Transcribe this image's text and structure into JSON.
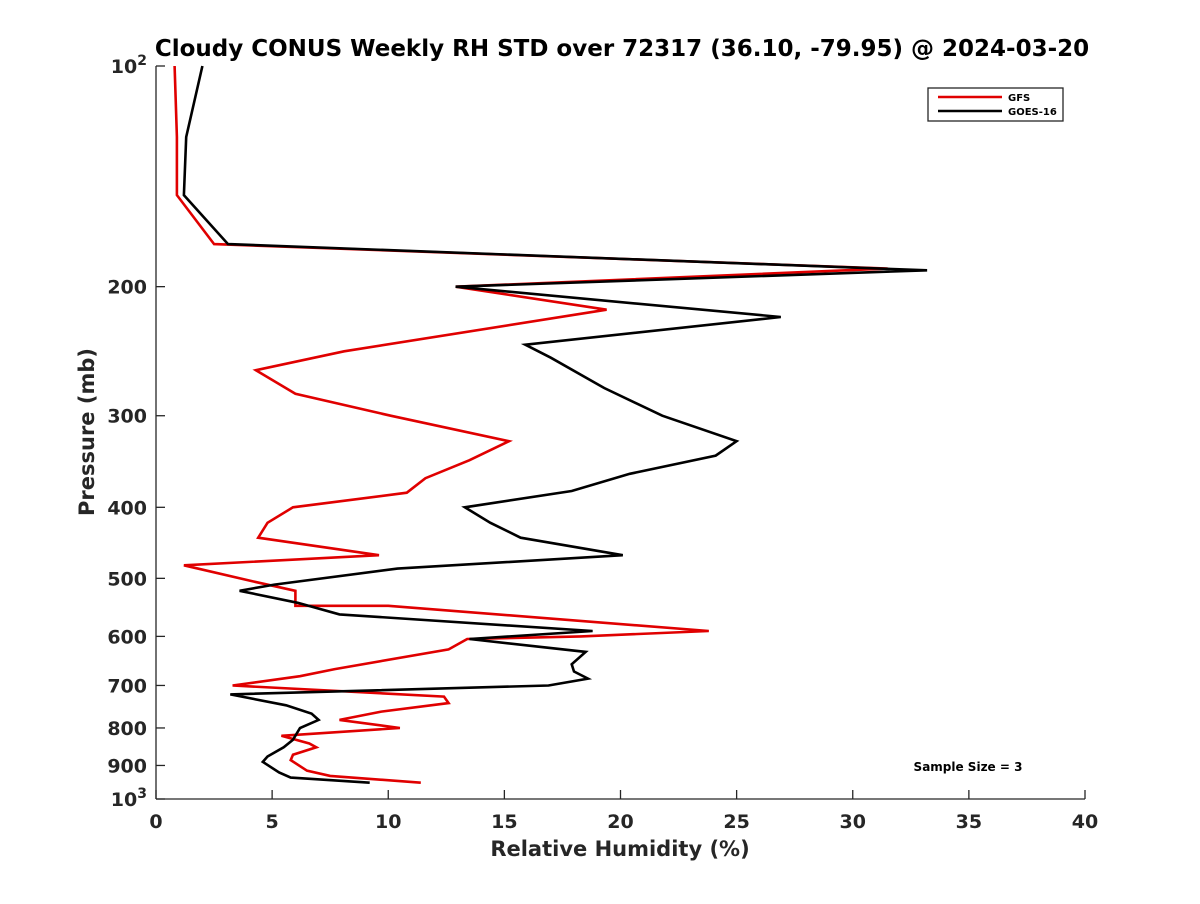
{
  "chart_data": {
    "type": "line",
    "title": "Cloudy CONUS Weekly RH STD over 72317 (36.10, -79.95) @ 2024-03-20",
    "xlabel": "Relative Humidity (%)",
    "ylabel": "Pressure (mb)",
    "xlim": [
      0,
      40
    ],
    "ylim": [
      100,
      1000
    ],
    "yscale": "log",
    "y_reversed": true,
    "xticks": [
      0,
      5,
      10,
      15,
      20,
      25,
      30,
      35,
      40
    ],
    "xtick_labels": [
      "0",
      "5",
      "10",
      "15",
      "20",
      "25",
      "30",
      "35",
      "40"
    ],
    "yticks": [
      100,
      200,
      300,
      400,
      500,
      600,
      700,
      800,
      900,
      1000
    ],
    "ytick_labels": [
      {
        "base": "10",
        "exp": "2"
      },
      {
        "base": "200",
        "exp": ""
      },
      {
        "base": "300",
        "exp": ""
      },
      {
        "base": "400",
        "exp": ""
      },
      {
        "base": "500",
        "exp": ""
      },
      {
        "base": "600",
        "exp": ""
      },
      {
        "base": "700",
        "exp": ""
      },
      {
        "base": "800",
        "exp": ""
      },
      {
        "base": "900",
        "exp": ""
      },
      {
        "base": "10",
        "exp": "3"
      }
    ],
    "grid": false,
    "legend_position": "top-right",
    "annotation": "Sample Size = 3",
    "series": [
      {
        "name": "GFS",
        "color": "#e00000",
        "points": [
          [
            0.8,
            100
          ],
          [
            0.9,
            125
          ],
          [
            0.9,
            150
          ],
          [
            2.5,
            175
          ],
          [
            31.5,
            189
          ],
          [
            12.9,
            200
          ],
          [
            19.4,
            215
          ],
          [
            8.1,
            245
          ],
          [
            4.3,
            260
          ],
          [
            6.0,
            280
          ],
          [
            10.1,
            300
          ],
          [
            15.2,
            325
          ],
          [
            13.5,
            345
          ],
          [
            11.6,
            365
          ],
          [
            10.8,
            382
          ],
          [
            5.9,
            400
          ],
          [
            4.8,
            420
          ],
          [
            4.4,
            440
          ],
          [
            9.6,
            465
          ],
          [
            1.2,
            480
          ],
          [
            4.2,
            505
          ],
          [
            6.0,
            520
          ],
          [
            6.0,
            545
          ],
          [
            10.0,
            545
          ],
          [
            23.8,
            590
          ],
          [
            18.3,
            600
          ],
          [
            13.4,
            605
          ],
          [
            12.6,
            625
          ],
          [
            7.7,
            665
          ],
          [
            6.2,
            680
          ],
          [
            3.3,
            700
          ],
          [
            12.4,
            725
          ],
          [
            12.6,
            740
          ],
          [
            9.7,
            760
          ],
          [
            7.9,
            780
          ],
          [
            10.5,
            800
          ],
          [
            5.4,
            820
          ],
          [
            6.6,
            840
          ],
          [
            6.9,
            850
          ],
          [
            5.9,
            870
          ],
          [
            5.8,
            885
          ],
          [
            6.5,
            915
          ],
          [
            7.5,
            930
          ],
          [
            11.4,
            950
          ]
        ]
      },
      {
        "name": "GOES-16",
        "color": "#000000",
        "points": [
          [
            2.0,
            100
          ],
          [
            1.3,
            125
          ],
          [
            1.2,
            150
          ],
          [
            3.1,
            175
          ],
          [
            33.2,
            190
          ],
          [
            12.9,
            200
          ],
          [
            26.9,
            220
          ],
          [
            15.9,
            240
          ],
          [
            17.0,
            250
          ],
          [
            19.3,
            275
          ],
          [
            21.8,
            300
          ],
          [
            25.0,
            325
          ],
          [
            24.1,
            340
          ],
          [
            20.4,
            360
          ],
          [
            17.9,
            380
          ],
          [
            13.3,
            400
          ],
          [
            14.4,
            420
          ],
          [
            15.7,
            440
          ],
          [
            20.1,
            465
          ],
          [
            10.4,
            485
          ],
          [
            5.1,
            510
          ],
          [
            3.6,
            520
          ],
          [
            6.1,
            540
          ],
          [
            7.9,
            560
          ],
          [
            18.8,
            590
          ],
          [
            13.5,
            605
          ],
          [
            18.5,
            630
          ],
          [
            17.9,
            655
          ],
          [
            18.0,
            670
          ],
          [
            18.6,
            685
          ],
          [
            16.9,
            700
          ],
          [
            3.2,
            720
          ],
          [
            5.6,
            745
          ],
          [
            6.7,
            765
          ],
          [
            7.0,
            780
          ],
          [
            6.2,
            800
          ],
          [
            5.9,
            830
          ],
          [
            5.5,
            850
          ],
          [
            4.8,
            875
          ],
          [
            4.6,
            890
          ],
          [
            5.3,
            920
          ],
          [
            5.8,
            935
          ],
          [
            9.2,
            950
          ]
        ]
      }
    ]
  }
}
